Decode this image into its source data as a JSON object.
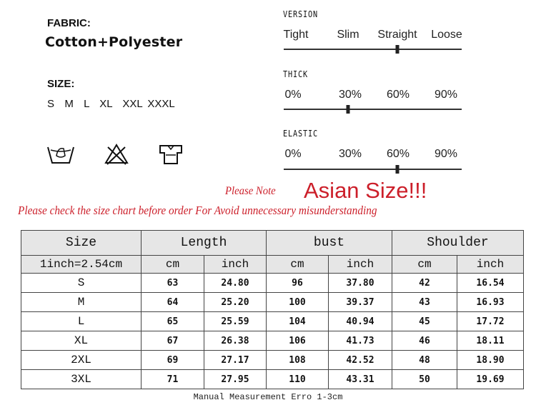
{
  "fabric": {
    "label": "FABRIC:",
    "value": "Cotton+Polyester"
  },
  "size": {
    "label": "SIZE:",
    "value": "S  M  L  XL  XXL XXXL"
  },
  "care_icons": [
    "hand-wash-icon",
    "do-not-bleach-icon",
    "tshirt-icon"
  ],
  "sliders": [
    {
      "title": "VERSION",
      "labels": [
        "Tight",
        "Slim",
        "Straight",
        "Loose"
      ],
      "selected": "Straight"
    },
    {
      "title": "THICK",
      "labels": [
        "0%",
        "30%",
        "60%",
        "90%"
      ],
      "selected": "30%"
    },
    {
      "title": "ELASTIC",
      "labels": [
        "0%",
        "30%",
        "60%",
        "90%"
      ],
      "selected": "60%"
    }
  ],
  "notice": {
    "prefix": "Please Note",
    "headline": "Asian Size!!!",
    "line": "Please check the size chart before order  For Avoid unnecessary misunderstanding",
    "color": "#cc1f2a"
  },
  "size_chart": {
    "headers": [
      "Size",
      "Length",
      "bust",
      "Shoulder"
    ],
    "subheaders": [
      "1inch=2.54cm",
      "cm",
      "inch",
      "cm",
      "inch",
      "cm",
      "inch"
    ],
    "rows": [
      [
        "S",
        "63",
        "24.80",
        "96",
        "37.80",
        "42",
        "16.54"
      ],
      [
        "M",
        "64",
        "25.20",
        "100",
        "39.37",
        "43",
        "16.93"
      ],
      [
        "L",
        "65",
        "25.59",
        "104",
        "40.94",
        "45",
        "17.72"
      ],
      [
        "XL",
        "67",
        "26.38",
        "106",
        "41.73",
        "46",
        "18.11"
      ],
      [
        "2XL",
        "69",
        "27.17",
        "108",
        "42.52",
        "48",
        "18.90"
      ],
      [
        "3XL",
        "71",
        "27.95",
        "110",
        "43.31",
        "50",
        "19.69"
      ]
    ],
    "footnote": "Manual Measurement Erro 1-3cm"
  }
}
